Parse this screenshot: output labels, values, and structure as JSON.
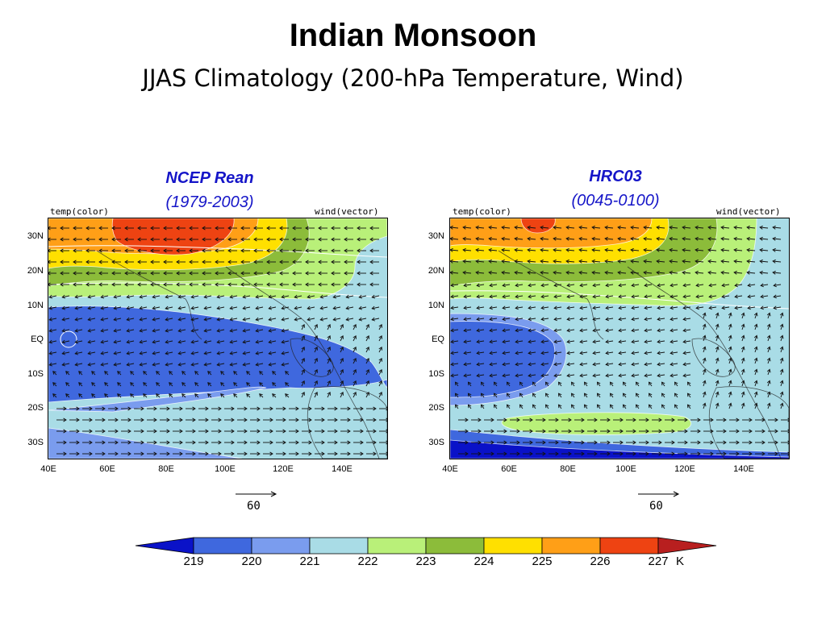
{
  "title": "Indian Monsoon",
  "subtitle": "JJAS Climatology (200-hPa Temperature, Wind)",
  "panels": [
    {
      "title": "NCEP Rean",
      "period": "(1979-2003)",
      "left_label": "temp(color)",
      "right_label": "wind(vector)",
      "ref_vector": "60"
    },
    {
      "title": "HRC03",
      "period": "(0045-0100)",
      "left_label": "temp(color)",
      "right_label": "wind(vector)",
      "ref_vector": "60"
    }
  ],
  "lat_ticks": [
    "30N",
    "20N",
    "10N",
    "EQ",
    "10S",
    "20S",
    "30S"
  ],
  "lon_ticks": [
    "40E",
    "60E",
    "80E",
    "100E",
    "120E",
    "140E"
  ],
  "colorbar": {
    "levels": [
      "219",
      "220",
      "221",
      "222",
      "223",
      "224",
      "225",
      "226",
      "227"
    ],
    "unit": "K",
    "colors": [
      "#0a12c8",
      "#3f68de",
      "#7a9cee",
      "#a9dce6",
      "#b9f079",
      "#8cbc3a",
      "#ffe000",
      "#ff9f17",
      "#ee4312",
      "#b81f1f"
    ]
  }
}
